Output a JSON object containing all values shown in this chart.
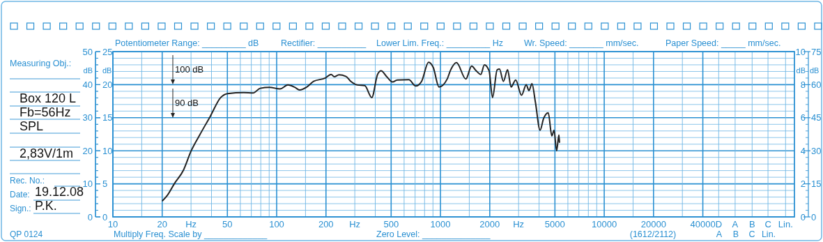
{
  "chart_data": {
    "type": "line",
    "color": "#222222",
    "x": [
      20.1,
      21.5,
      23.7,
      27,
      30,
      33.9,
      39.3,
      45.5,
      50.2,
      63,
      71.9,
      79.3,
      90.3,
      104.8,
      117,
      129,
      138,
      152,
      168,
      198,
      215,
      225,
      240,
      265,
      282,
      312,
      345,
      381,
      413,
      434,
      470,
      510,
      545,
      641,
      707,
      767,
      846,
      904,
      980,
      1099,
      1155,
      1253,
      1429,
      1550,
      1653,
      1765,
      1854,
      1981,
      2080,
      2220,
      2293,
      2423,
      2570,
      2699,
      2880,
      3128,
      3339,
      3470,
      3620,
      3800,
      4060,
      4260,
      4550,
      4790,
      4940,
      5120,
      5290,
      5330
    ],
    "values": [
      4.9,
      6.5,
      10,
      14.2,
      19.9,
      24.8,
      30.4,
      36.1,
      37.3,
      37.6,
      37.5,
      38.9,
      39.2,
      38.7,
      39.9,
      39.2,
      38.4,
      39.2,
      41,
      42,
      43.1,
      42.4,
      43,
      42.5,
      41.1,
      39.9,
      39.7,
      36.1,
      43.1,
      44.2,
      42.4,
      40.8,
      41.4,
      41.5,
      39.6,
      41,
      46.8,
      45.2,
      39.3,
      41.7,
      44.5,
      46.7,
      41.7,
      45.6,
      44.2,
      43.1,
      46,
      44.2,
      36.1,
      44.5,
      44.7,
      41,
      44.5,
      39.3,
      41.4,
      36.8,
      40,
      38.2,
      40.3,
      34.7,
      26.2,
      29.7,
      31.5,
      24.5,
      26.2,
      20,
      24.8,
      22.6
    ],
    "xlim": [
      10,
      145000
    ],
    "xticks": [
      10,
      {
        "value": 15,
        "label": null
      },
      20,
      {
        "value": 30,
        "label": "Hz"
      },
      {
        "value": 40,
        "label": null
      },
      50,
      {
        "value": 60,
        "label": null
      },
      {
        "value": 70,
        "label": null
      },
      {
        "value": 80,
        "label": null
      },
      {
        "value": 90,
        "label": null
      },
      100,
      {
        "value": 150,
        "label": null
      },
      200,
      {
        "value": 300,
        "label": "Hz"
      },
      {
        "value": 400,
        "label": null
      },
      500,
      {
        "value": 600,
        "label": null
      },
      {
        "value": 700,
        "label": null
      },
      {
        "value": 800,
        "label": null
      },
      {
        "value": 900,
        "label": null
      },
      1000,
      {
        "value": 1500,
        "label": null
      },
      2000,
      {
        "value": 3000,
        "label": "Hz"
      },
      {
        "value": 4000,
        "label": null
      },
      5000,
      {
        "value": 6000,
        "label": null
      },
      {
        "value": 7000,
        "label": null
      },
      {
        "value": 8000,
        "label": null
      },
      {
        "value": 9000,
        "label": null
      },
      10000,
      {
        "value": 15000,
        "label": null
      },
      20000,
      {
        "value": 30000,
        "label": null
      },
      40000,
      {
        "value": 50000,
        "label": "D"
      },
      {
        "value": 63000,
        "label": "A"
      },
      {
        "value": 80000,
        "label": "B"
      },
      {
        "value": 100000,
        "label": "C"
      },
      {
        "value": 128000,
        "label": "Lin."
      }
    ],
    "ylim": [
      0,
      50
    ],
    "yticks": [
      0,
      {
        "value": 2,
        "label": null
      },
      {
        "value": 4,
        "label": null
      },
      {
        "value": 6,
        "label": null
      },
      {
        "value": 8,
        "label": null
      },
      10,
      {
        "value": 12,
        "label": null
      },
      {
        "value": 14,
        "label": null
      },
      {
        "value": 16,
        "label": null
      },
      {
        "value": 18,
        "label": null
      },
      20,
      {
        "value": 22,
        "label": null
      },
      {
        "value": 24,
        "label": null
      },
      {
        "value": 26,
        "label": null
      },
      {
        "value": 28,
        "label": null
      },
      30,
      {
        "value": 32,
        "label": null
      },
      {
        "value": 34,
        "label": null
      },
      {
        "value": 36,
        "label": null
      },
      {
        "value": 38,
        "label": null
      },
      40,
      {
        "value": 42,
        "label": null
      },
      {
        "value": 44,
        "label": null
      },
      {
        "value": 46,
        "label": null
      },
      {
        "value": 48,
        "label": null
      },
      50
    ],
    "y2lim": [
      0,
      25
    ],
    "y2ticks": [
      0,
      5,
      10,
      15,
      20,
      25
    ],
    "y3lim": [
      0,
      10
    ],
    "y3ticks": [
      0,
      2,
      4,
      6,
      8,
      10
    ],
    "ylabel": "dB",
    "y2label": "dB",
    "y3label": "dB",
    "log": "x",
    "grid": true,
    "annotations": [
      "Measuring Obj.:",
      "Potentiometer Range: _________ dB",
      "Rectifier: __________",
      "Lower Lim. Freq.: _________ Hz",
      "Wr.  Speed: _______ mm/sec.",
      "Paper Speed: _____ mm/sec.",
      "Box 120 L",
      "Fb=56Hz",
      "SPL",
      "2,83V/1m",
      "Rec.  No.:",
      "Date:",
      "19.12.08",
      "Sign.:",
      "P.K.",
      "QP  0124",
      "Multiply Freq. Scale by _____________",
      "Zero Level: ______________",
      "(1612/2112)",
      "A",
      "B",
      "C",
      "Lin.",
      "100 dB",
      "90 dB",
      "75",
      "60",
      "45",
      "30",
      "15",
      "0",
      "dB"
    ]
  }
}
